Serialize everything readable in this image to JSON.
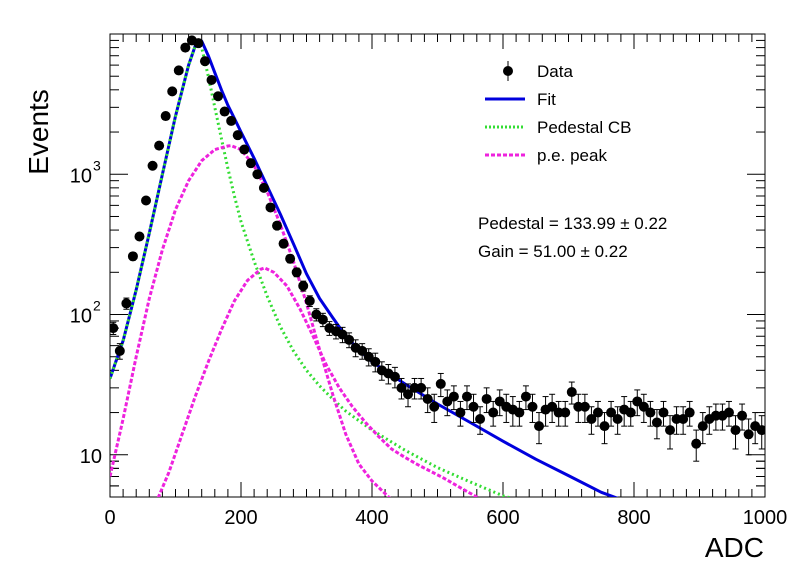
{
  "chart_data": {
    "type": "scatter",
    "title": "",
    "xlabel": "ADC",
    "ylabel": "Events",
    "xlim": [
      0,
      1000
    ],
    "ylim": [
      5,
      10000
    ],
    "yscale": "log",
    "grid": false,
    "legend_position": "top-right",
    "x_ticks": [
      {
        "value": 0,
        "label": "0"
      },
      {
        "value": 200,
        "label": "200"
      },
      {
        "value": 400,
        "label": "400"
      },
      {
        "value": 600,
        "label": "600"
      },
      {
        "value": 800,
        "label": "800"
      },
      {
        "value": 1000,
        "label": "1000"
      }
    ],
    "y_ticks": [
      {
        "value": 10,
        "label": "10"
      },
      {
        "value": 100,
        "label": "10",
        "exponent": "2"
      },
      {
        "value": 1000,
        "label": "10",
        "exponent": "3"
      }
    ],
    "legend": [
      {
        "key": "data",
        "label": "Data",
        "style": "marker",
        "color": "#000000"
      },
      {
        "key": "fit",
        "label": "Fit",
        "style": "solid",
        "color": "#0000dd"
      },
      {
        "key": "ped",
        "label": "Pedestal CB",
        "style": "dotted",
        "color": "#33dd33"
      },
      {
        "key": "pe",
        "label": "p.e. peak",
        "style": "dashed",
        "color": "#ee22dd"
      }
    ],
    "annotations": [
      {
        "text": "Pedestal = 133.99 ± 0.22"
      },
      {
        "text": "Gain = 51.00 ± 0.22"
      }
    ],
    "series": [
      {
        "name": "Data",
        "kind": "points",
        "color": "#000000",
        "x": [
          5,
          15,
          25,
          35,
          45,
          55,
          65,
          75,
          85,
          95,
          105,
          115,
          125,
          135,
          145,
          155,
          165,
          175,
          185,
          195,
          205,
          215,
          225,
          235,
          245,
          255,
          265,
          275,
          285,
          295,
          305,
          315,
          325,
          335,
          345,
          355,
          365,
          375,
          385,
          395,
          405,
          415,
          425,
          435,
          445,
          455,
          465,
          475,
          485,
          495,
          505,
          515,
          525,
          535,
          545,
          555,
          565,
          575,
          585,
          595,
          605,
          615,
          625,
          635,
          645,
          655,
          665,
          675,
          685,
          695,
          705,
          715,
          725,
          735,
          745,
          755,
          765,
          775,
          785,
          795,
          805,
          815,
          825,
          835,
          845,
          855,
          865,
          875,
          885,
          895,
          905,
          915,
          925,
          935,
          945,
          955,
          965,
          975,
          985,
          995
        ],
        "y": [
          80,
          55,
          120,
          260,
          360,
          650,
          1150,
          1600,
          2600,
          3900,
          5500,
          8000,
          9000,
          8600,
          6400,
          4700,
          3600,
          2800,
          2400,
          1900,
          1500,
          1200,
          1000,
          800,
          580,
          430,
          320,
          250,
          200,
          160,
          125,
          100,
          92,
          80,
          76,
          72,
          66,
          58,
          55,
          50,
          46,
          40,
          38,
          36,
          30,
          27,
          30,
          30,
          25,
          22,
          32,
          24,
          26,
          20,
          26,
          22,
          18,
          25,
          20,
          24,
          22,
          21,
          20,
          26,
          22,
          16,
          21,
          22,
          20,
          20,
          28,
          22,
          22,
          18,
          20,
          16,
          20,
          18,
          21,
          20,
          24,
          22,
          20,
          17,
          20,
          15,
          18,
          18,
          20,
          12,
          16,
          18,
          19,
          19,
          20,
          15,
          19,
          14,
          16,
          15
        ],
        "y_err": [
          8,
          7,
          11,
          16,
          19,
          25,
          34,
          40,
          51,
          62,
          74,
          89,
          95,
          93,
          80,
          69,
          60,
          53,
          49,
          44,
          39,
          35,
          32,
          28,
          24,
          21,
          18,
          16,
          14,
          13,
          11,
          10,
          10,
          9,
          9,
          9,
          8,
          8,
          7,
          7,
          7,
          6,
          6,
          6,
          5,
          5,
          5,
          5,
          5,
          5,
          6,
          5,
          5,
          4,
          5,
          5,
          4,
          5,
          4,
          5,
          5,
          5,
          4,
          5,
          5,
          4,
          5,
          5,
          4,
          4,
          5,
          5,
          5,
          4,
          4,
          4,
          4,
          4,
          5,
          4,
          5,
          5,
          4,
          4,
          4,
          4,
          4,
          4,
          4,
          3,
          4,
          4,
          4,
          4,
          4,
          4,
          4,
          4,
          4,
          4
        ]
      },
      {
        "name": "Fit",
        "kind": "line",
        "color": "#0000dd",
        "x": [
          0,
          20,
          40,
          60,
          80,
          100,
          120,
          133,
          140,
          150,
          160,
          170,
          180,
          190,
          200,
          220,
          240,
          260,
          280,
          300,
          320,
          340,
          360,
          380,
          400,
          450,
          500,
          550,
          600,
          650,
          700,
          750,
          780
        ],
        "y": [
          35,
          65,
          150,
          380,
          1000,
          2600,
          6000,
          9000,
          8900,
          7000,
          5300,
          4000,
          3100,
          2500,
          2000,
          1300,
          820,
          520,
          320,
          195,
          130,
          95,
          70,
          56,
          46,
          32,
          23,
          17,
          12.5,
          9.3,
          7.1,
          5.4,
          4.8
        ]
      },
      {
        "name": "Pedestal CB",
        "kind": "line",
        "color": "#33dd33",
        "x": [
          0,
          20,
          40,
          60,
          80,
          100,
          120,
          133,
          140,
          150,
          160,
          170,
          180,
          190,
          200,
          220,
          240,
          260,
          280,
          300,
          320,
          340,
          360,
          380,
          400,
          450,
          500,
          550,
          600,
          640
        ],
        "y": [
          35,
          65,
          150,
          380,
          1000,
          2600,
          6000,
          9000,
          8000,
          5000,
          3000,
          1800,
          1100,
          700,
          460,
          240,
          135,
          82,
          55,
          40,
          31,
          25,
          20.5,
          17.5,
          15,
          10.8,
          8.1,
          6.4,
          5.1,
          4.5
        ]
      },
      {
        "name": "p.e. peak",
        "kind": "line",
        "color": "#ee22dd",
        "x": [
          0,
          20,
          40,
          60,
          80,
          100,
          120,
          140,
          160,
          180,
          185,
          200,
          220,
          240,
          260,
          280,
          300,
          320,
          340,
          360,
          380,
          400,
          440
        ],
        "y": [
          7,
          18,
          50,
          130,
          290,
          560,
          900,
          1250,
          1500,
          1590,
          1600,
          1500,
          1150,
          750,
          440,
          240,
          120,
          56,
          27,
          14,
          8.6,
          6.5,
          4.3
        ]
      },
      {
        "name": "p.e. peak",
        "kind": "line",
        "color": "#ee22dd",
        "x": [
          70,
          90,
          110,
          130,
          150,
          170,
          190,
          210,
          230,
          236,
          250,
          270,
          290,
          310,
          330,
          350,
          370,
          390,
          410,
          430,
          450,
          470,
          490,
          510,
          530,
          560,
          580
        ],
        "y": [
          4.5,
          7.5,
          14,
          26,
          46,
          78,
          125,
          175,
          210,
          215,
          200,
          160,
          110,
          70,
          44,
          30,
          22,
          17,
          13.5,
          11,
          9.6,
          8.5,
          7.6,
          6.8,
          6.0,
          5.0,
          4.5
        ]
      }
    ]
  }
}
